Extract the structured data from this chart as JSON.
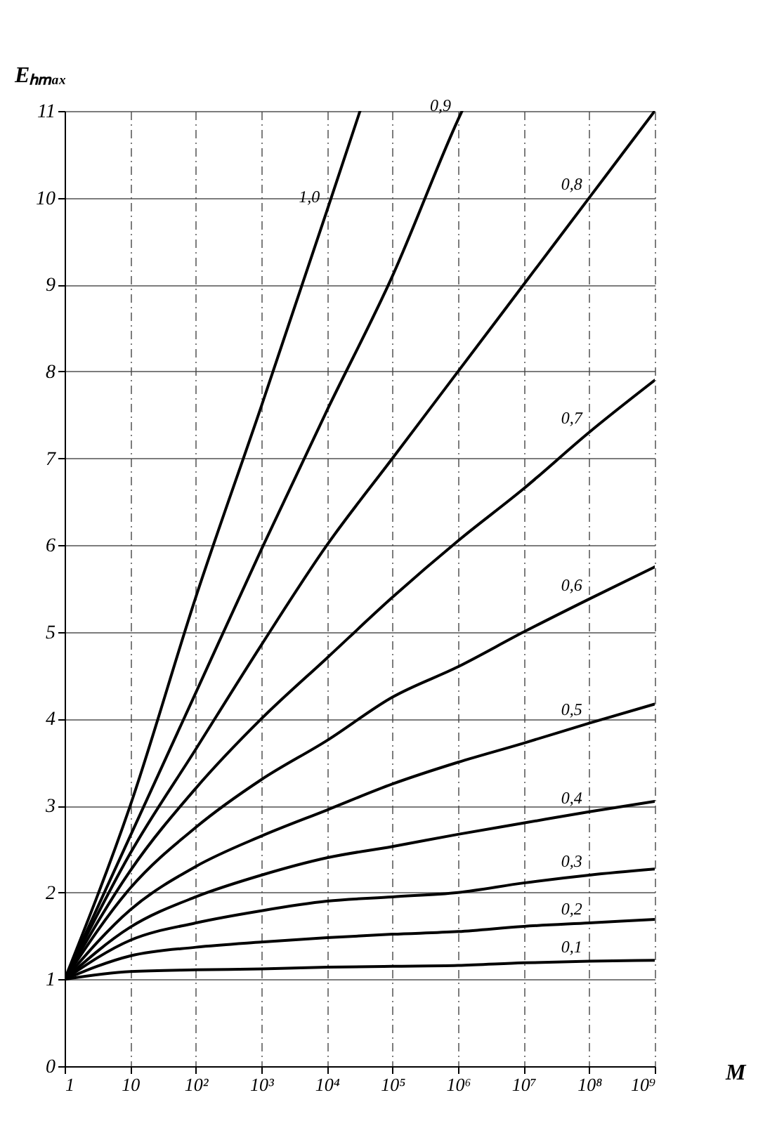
{
  "chart_data": {
    "type": "line",
    "xlabel": "M",
    "ylabel": "Eₕₘₐₓ",
    "log": "x",
    "grid": true,
    "xlim": [
      1,
      1000000000
    ],
    "ylim": [
      0,
      11
    ],
    "xticks": [
      1,
      10,
      {
        "value": 100,
        "label": "10²"
      },
      {
        "value": 1000,
        "label": "10³"
      },
      {
        "value": 10000,
        "label": "10⁴"
      },
      {
        "value": 100000,
        "label": "10⁵"
      },
      {
        "value": 1000000,
        "label": "10⁶"
      },
      {
        "value": 10000000,
        "label": "10⁷"
      },
      {
        "value": 100000000,
        "label": "10⁸"
      },
      {
        "value": 1000000000,
        "label": "10⁹"
      }
    ],
    "yticks": [
      0,
      1,
      2,
      3,
      4,
      5,
      6,
      7,
      8,
      9,
      10,
      11
    ],
    "series": [
      {
        "name": "1,0",
        "color": "#000000",
        "x": [
          1,
          10,
          100,
          1000,
          10000,
          32000
        ],
        "values": [
          1,
          3.0,
          5.4,
          7.6,
          9.85,
          11
        ]
      },
      {
        "name": "0,9",
        "color": "#000000",
        "x": [
          1,
          10,
          100,
          1000,
          10000,
          100000,
          1000000,
          1150000
        ],
        "values": [
          1,
          2.65,
          4.3,
          5.95,
          7.55,
          9.1,
          10.9,
          11
        ]
      },
      {
        "name": "0,8",
        "color": "#000000",
        "x": [
          1,
          10,
          100,
          1000,
          10000,
          100000,
          1000000,
          10000000,
          100000000,
          1000000000
        ],
        "values": [
          1,
          2.45,
          3.65,
          4.85,
          6.0,
          7.0,
          8.0,
          9.0,
          10.0,
          11
        ]
      },
      {
        "name": "0,7",
        "color": "#000000",
        "x": [
          1,
          10,
          100,
          1000,
          10000,
          100000,
          1000000,
          10000000,
          100000000,
          1000000000
        ],
        "values": [
          1,
          2.25,
          3.2,
          4.0,
          4.7,
          5.4,
          6.05,
          6.65,
          7.3,
          7.9
        ]
      },
      {
        "name": "0,6",
        "color": "#000000",
        "x": [
          1,
          10,
          100,
          1000,
          10000,
          100000,
          1000000,
          10000000,
          100000000,
          1000000000
        ],
        "values": [
          1,
          2.05,
          2.75,
          3.3,
          3.75,
          4.25,
          4.6,
          5.0,
          5.38,
          5.75
        ]
      },
      {
        "name": "0,5",
        "color": "#000000",
        "x": [
          1,
          10,
          100,
          1000,
          10000,
          100000,
          1000000,
          10000000,
          100000000,
          1000000000
        ],
        "values": [
          1,
          1.8,
          2.3,
          2.65,
          2.95,
          3.25,
          3.5,
          3.72,
          3.95,
          4.17
        ]
      },
      {
        "name": "0,4",
        "color": "#000000",
        "x": [
          1,
          10,
          100,
          1000,
          10000,
          100000,
          1000000,
          10000000,
          100000000,
          1000000000
        ],
        "values": [
          1,
          1.6,
          1.95,
          2.2,
          2.4,
          2.53,
          2.67,
          2.8,
          2.93,
          3.05
        ]
      },
      {
        "name": "0,3",
        "color": "#000000",
        "x": [
          1,
          10,
          100,
          1000,
          10000,
          100000,
          1000000,
          10000000,
          100000000,
          1000000000
        ],
        "values": [
          1,
          1.45,
          1.65,
          1.79,
          1.9,
          1.95,
          2.0,
          2.11,
          2.2,
          2.27
        ]
      },
      {
        "name": "0,2",
        "color": "#000000",
        "x": [
          1,
          10,
          100,
          1000,
          10000,
          100000,
          1000000,
          10000000,
          100000000,
          1000000000
        ],
        "values": [
          1,
          1.27,
          1.37,
          1.43,
          1.48,
          1.52,
          1.55,
          1.61,
          1.65,
          1.69
        ]
      },
      {
        "name": "0,1",
        "color": "#000000",
        "x": [
          1,
          10,
          100,
          1000,
          10000,
          100000,
          1000000,
          10000000,
          100000000,
          1000000000
        ],
        "values": [
          1,
          1.09,
          1.11,
          1.12,
          1.14,
          1.15,
          1.16,
          1.19,
          1.21,
          1.22
        ]
      }
    ]
  }
}
